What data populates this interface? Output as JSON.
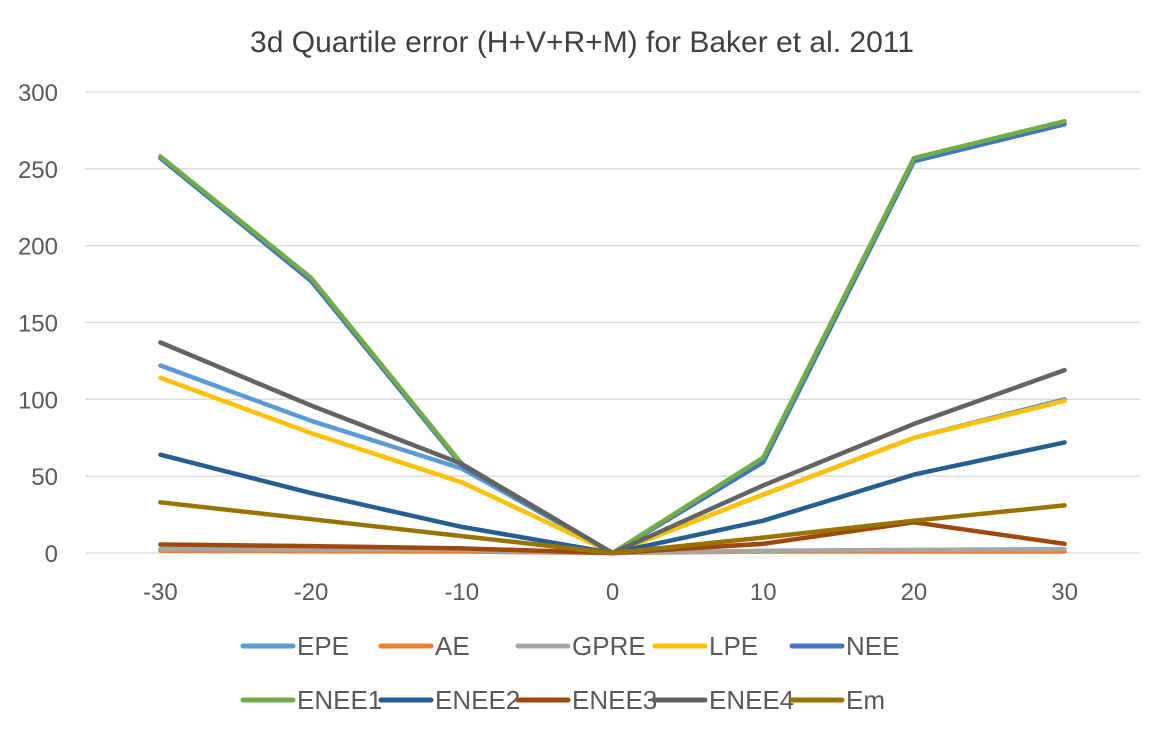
{
  "chart_data": {
    "type": "line",
    "title": "3d Quartile error (H+V+R+M) for Baker et al. 2011",
    "xlabel": "",
    "ylabel": "",
    "ylim": [
      0,
      300
    ],
    "yticks": [
      0,
      50,
      100,
      150,
      200,
      250,
      300
    ],
    "categories": [
      "-30",
      "-20",
      "-10",
      "0",
      "10",
      "20",
      "30"
    ],
    "grid": true,
    "legend_position": "bottom",
    "series": [
      {
        "name": "EPE",
        "color": "#5B9BD5",
        "values": [
          122,
          86,
          55,
          0,
          38,
          75,
          100
        ]
      },
      {
        "name": "AE",
        "color": "#ED7D31",
        "values": [
          1.5,
          1.2,
          1,
          0,
          1,
          1,
          1
        ]
      },
      {
        "name": "GPRE",
        "color": "#A5A5A5",
        "values": [
          2.5,
          2.2,
          2,
          0,
          1.5,
          2,
          2.5
        ]
      },
      {
        "name": "LPE",
        "color": "#FFC000",
        "values": [
          114,
          78,
          46,
          0,
          38,
          75,
          99
        ]
      },
      {
        "name": "NEE",
        "color": "#4472C4",
        "values": [
          257,
          177,
          57,
          0,
          59,
          255,
          279
        ]
      },
      {
        "name": "ENEE1",
        "color": "#70AD47",
        "values": [
          258,
          179,
          58,
          0,
          62,
          257,
          281
        ]
      },
      {
        "name": "ENEE2",
        "color": "#255E91",
        "values": [
          64,
          39,
          17,
          0,
          21,
          51,
          72
        ]
      },
      {
        "name": "ENEE3",
        "color": "#9E480E",
        "values": [
          5.5,
          4.5,
          3,
          0,
          6,
          20,
          6
        ]
      },
      {
        "name": "ENEE4",
        "color": "#636363",
        "values": [
          137,
          96,
          58,
          0,
          44,
          84,
          119
        ]
      },
      {
        "name": "Em",
        "color": "#997300",
        "values": [
          33,
          22,
          11,
          0,
          10,
          21,
          31
        ]
      }
    ]
  }
}
